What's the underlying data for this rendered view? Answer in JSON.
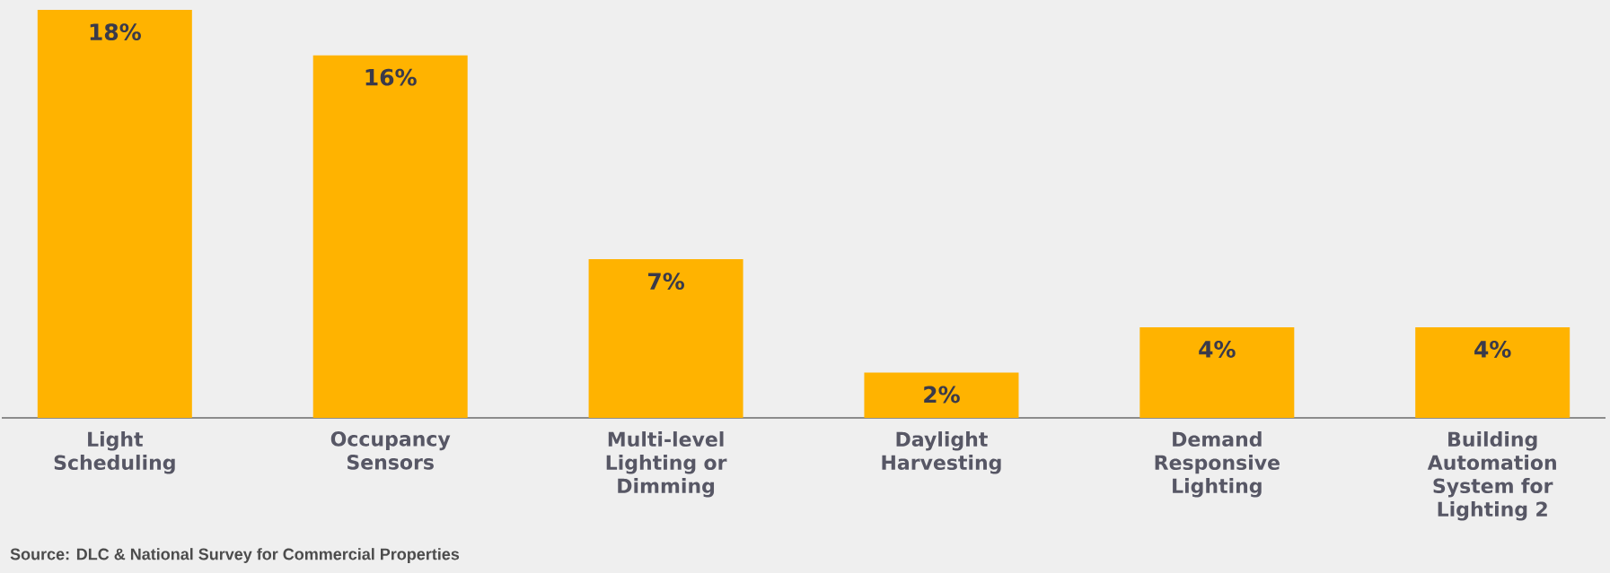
{
  "chart_data": {
    "type": "bar",
    "categories": [
      "Light Scheduling",
      "Occupancy Sensors",
      "Multi-level Lighting or Dimming",
      "Daylight Harvesting",
      "Demand Responsive Lighting",
      "Building Automation System for Lighting 2"
    ],
    "values": [
      18,
      16,
      7,
      2,
      4,
      4
    ],
    "value_labels": [
      "18%",
      "16%",
      "7%",
      "2%",
      "4%",
      "4%"
    ],
    "color": "#ffb300",
    "annotations": [
      "Source: DLC & National Survey for Commercial Properties"
    ]
  }
}
